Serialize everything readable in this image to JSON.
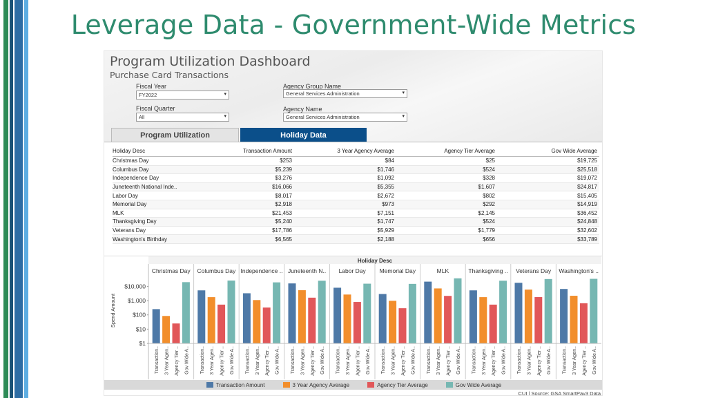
{
  "slide": {
    "title": "Leverage Data - Government-Wide Metrics"
  },
  "dashboard": {
    "title": "Program Utilization Dashboard",
    "subtitle": "Purchase Card Transactions"
  },
  "filters": {
    "fiscal_year": {
      "label": "Fiscal Year",
      "value": "FY2022"
    },
    "fiscal_quarter": {
      "label": "Fiscal Quarter",
      "value": "All"
    },
    "agency_group": {
      "label": "Agency Group Name",
      "value": "General Services Administration"
    },
    "agency_name": {
      "label": "Agency Name",
      "value": "General Services Administration"
    }
  },
  "tabs": {
    "program": "Program Utilization",
    "holiday": "Holiday Data"
  },
  "table": {
    "headers": [
      "Holiday Desc",
      "Transaction Amount",
      "3 Year Agency Average",
      "Agency Tier Average",
      "Gov Wide Average"
    ],
    "rows": [
      [
        "Christmas Day",
        "$253",
        "$84",
        "$25",
        "$19,725"
      ],
      [
        "Columbus Day",
        "$5,239",
        "$1,746",
        "$524",
        "$25,518"
      ],
      [
        "Independence Day",
        "$3,276",
        "$1,092",
        "$328",
        "$19,072"
      ],
      [
        "Juneteenth National Inde..",
        "$16,066",
        "$5,355",
        "$1,607",
        "$24,817"
      ],
      [
        "Labor Day",
        "$8,017",
        "$2,672",
        "$802",
        "$15,405"
      ],
      [
        "Memorial Day",
        "$2,918",
        "$973",
        "$292",
        "$14,919"
      ],
      [
        "MLK",
        "$21,453",
        "$7,151",
        "$2,145",
        "$36,452"
      ],
      [
        "Thanksgiving Day",
        "$5,240",
        "$1,747",
        "$524",
        "$24,848"
      ],
      [
        "Veterans Day",
        "$17,786",
        "$5,929",
        "$1,779",
        "$32,602"
      ],
      [
        "Washington's Birthday",
        "$6,565",
        "$2,188",
        "$656",
        "$33,789"
      ]
    ]
  },
  "chart_data": {
    "type": "bar",
    "title": "Holiday Desc",
    "ylabel": "Spend Amount",
    "yscale": "log",
    "ylim": [
      1,
      40000
    ],
    "yticks": [
      10000,
      1000,
      100,
      10,
      1
    ],
    "ytick_labels": [
      "$10,000",
      "$1,000",
      "$100",
      "$10",
      "$1"
    ],
    "categories": [
      "Christmas Day",
      "Columbus Day",
      "Independence ..",
      "Juneteenth N..",
      "Labor Day",
      "Memorial Day",
      "MLK",
      "Thanksgiving ..",
      "Veterans Day",
      "Washington's .."
    ],
    "bar_labels": [
      "Transaction..",
      "3 Year Agen..",
      "Agency Tier ..",
      "Gov Wide A.."
    ],
    "series": [
      {
        "name": "Transaction Amount",
        "color": "#4e79a7",
        "values": [
          253,
          5239,
          3276,
          16066,
          8017,
          2918,
          21453,
          5240,
          17786,
          6565
        ]
      },
      {
        "name": "3 Year Agency Average",
        "color": "#f28e2b",
        "values": [
          84,
          1746,
          1092,
          5355,
          2672,
          973,
          7151,
          1747,
          5929,
          2188
        ]
      },
      {
        "name": "Agency Tier Average",
        "color": "#e15759",
        "values": [
          25,
          524,
          328,
          1607,
          802,
          292,
          2145,
          524,
          1779,
          656
        ]
      },
      {
        "name": "Gov Wide Average",
        "color": "#76b7b2",
        "values": [
          19725,
          25518,
          19072,
          24817,
          15405,
          14919,
          36452,
          24848,
          32602,
          33789
        ]
      }
    ]
  },
  "source": "CUI | Source: GSA SmartPay3 Data"
}
